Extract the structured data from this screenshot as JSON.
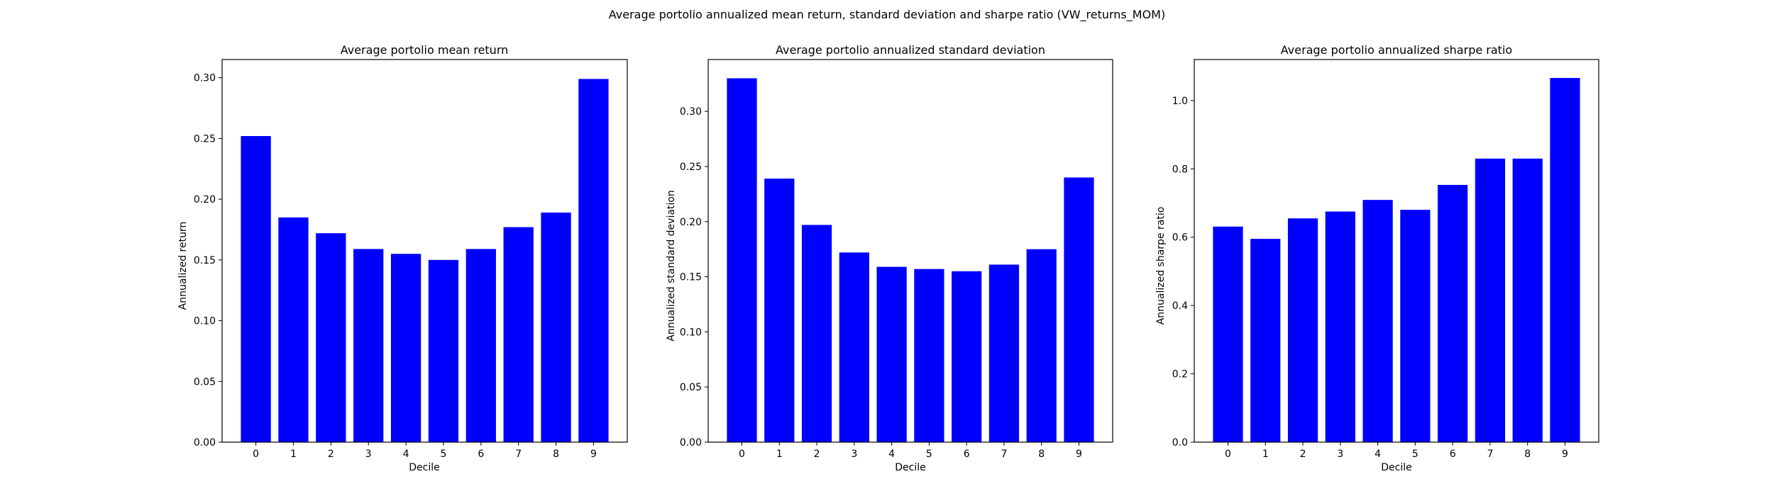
{
  "figure": {
    "suptitle": "Average portolio annualized mean return, standard deviation and sharpe ratio (VW_returns_MOM)"
  },
  "chart_data": [
    {
      "type": "bar",
      "title": "Average portolio mean return",
      "xlabel": "Decile",
      "ylabel": "Annualized return",
      "categories": [
        "0",
        "1",
        "2",
        "3",
        "4",
        "5",
        "6",
        "7",
        "8",
        "9"
      ],
      "values": [
        0.252,
        0.185,
        0.172,
        0.159,
        0.155,
        0.15,
        0.159,
        0.177,
        0.189,
        0.299
      ],
      "ylim": [
        0,
        0.315
      ],
      "yticks": [
        0.0,
        0.05,
        0.1,
        0.15,
        0.2,
        0.25,
        0.3
      ],
      "ytick_labels": [
        "0.00",
        "0.05",
        "0.10",
        "0.15",
        "0.20",
        "0.25",
        "0.30"
      ],
      "color": "#0000ff",
      "grid": false
    },
    {
      "type": "bar",
      "title": "Average portolio annualized standard deviation",
      "xlabel": "Decile",
      "ylabel": "Annualized standard deviation",
      "categories": [
        "0",
        "1",
        "2",
        "3",
        "4",
        "5",
        "6",
        "7",
        "8",
        "9"
      ],
      "values": [
        0.33,
        0.239,
        0.197,
        0.172,
        0.159,
        0.157,
        0.155,
        0.161,
        0.175,
        0.24
      ],
      "ylim": [
        0,
        0.347
      ],
      "yticks": [
        0.0,
        0.05,
        0.1,
        0.15,
        0.2,
        0.25,
        0.3
      ],
      "ytick_labels": [
        "0.00",
        "0.05",
        "0.10",
        "0.15",
        "0.20",
        "0.25",
        "0.30"
      ],
      "color": "#0000ff",
      "grid": false
    },
    {
      "type": "bar",
      "title": "Average portolio annualized sharpe ratio",
      "xlabel": "Decile",
      "ylabel": "Annualized sharpe ratio",
      "categories": [
        "0",
        "1",
        "2",
        "3",
        "4",
        "5",
        "6",
        "7",
        "8",
        "9"
      ],
      "values": [
        0.631,
        0.595,
        0.655,
        0.675,
        0.709,
        0.68,
        0.753,
        0.83,
        0.83,
        1.066
      ],
      "ylim": [
        0,
        1.12
      ],
      "yticks": [
        0.0,
        0.2,
        0.4,
        0.6,
        0.8,
        1.0
      ],
      "ytick_labels": [
        "0.0",
        "0.2",
        "0.4",
        "0.6",
        "0.8",
        "1.0"
      ],
      "color": "#0000ff",
      "grid": false
    }
  ]
}
